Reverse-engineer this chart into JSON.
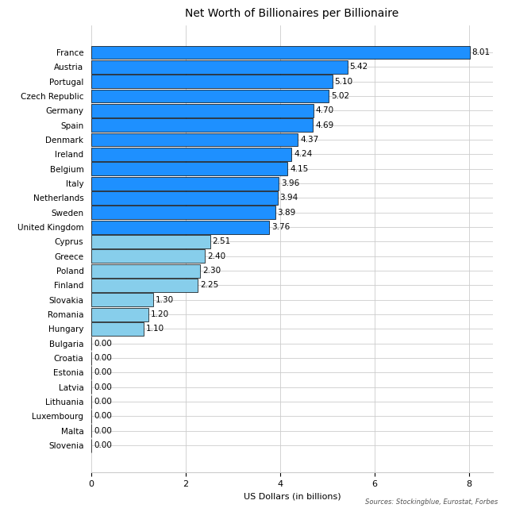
{
  "title": "Net Worth of Billionaires per Billionaire",
  "xlabel": "US Dollars (in billions)",
  "source": "Sources: Stockingblue, Eurostat, Forbes",
  "countries": [
    "France",
    "Austria",
    "Portugal",
    "Czech Republic",
    "Germany",
    "Spain",
    "Denmark",
    "Ireland",
    "Belgium",
    "Italy",
    "Netherlands",
    "Sweden",
    "United Kingdom",
    "Cyprus",
    "Greece",
    "Poland",
    "Finland",
    "Slovakia",
    "Romania",
    "Hungary",
    "Bulgaria",
    "Croatia",
    "Estonia",
    "Latvia",
    "Lithuania",
    "Luxembourg",
    "Malta",
    "Slovenia"
  ],
  "values": [
    8.01,
    5.42,
    5.1,
    5.02,
    4.7,
    4.69,
    4.37,
    4.24,
    4.15,
    3.96,
    3.94,
    3.89,
    3.76,
    2.51,
    2.4,
    2.3,
    2.25,
    1.3,
    1.2,
    1.1,
    0.0,
    0.0,
    0.0,
    0.0,
    0.0,
    0.0,
    0.0,
    0.0
  ],
  "high_color": "#1E90FF",
  "mid_color": "#87CEEB",
  "low_color": "#C5E8F5",
  "high_threshold": 3.76,
  "mid_threshold": 1.1,
  "xlim": [
    0,
    8.5
  ],
  "xticks": [
    0,
    2,
    4,
    6,
    8
  ],
  "background_color": "#FFFFFF",
  "grid_color": "#CCCCCC",
  "title_fontsize": 10,
  "label_fontsize": 7.5,
  "tick_fontsize": 8,
  "bar_height": 0.92
}
